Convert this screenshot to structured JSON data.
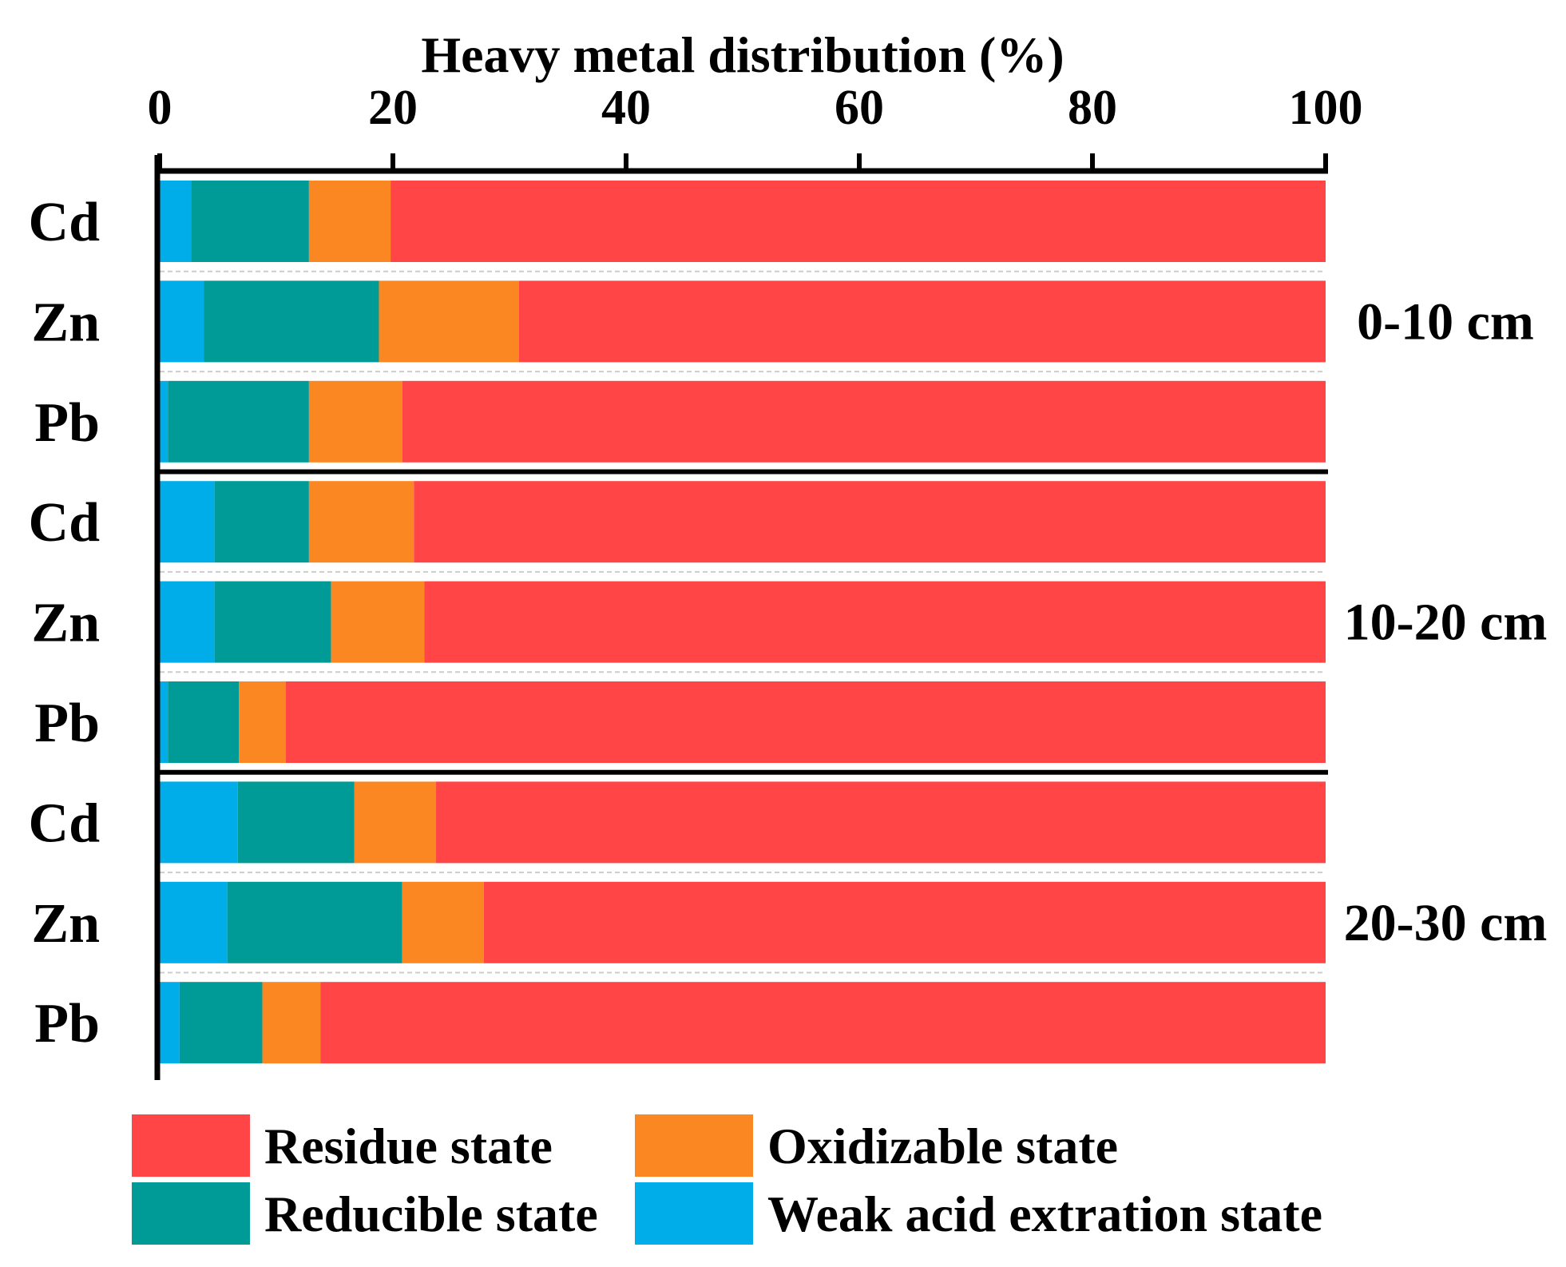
{
  "colors": {
    "residue": "#ff4545",
    "oxidizable": "#fb8722",
    "reducible": "#009b97",
    "weak_acid": "#00ade8",
    "axis": "#000000",
    "divider": "#cccccc"
  },
  "chart_data": {
    "type": "bar",
    "orientation": "horizontal",
    "stacked": true,
    "title": "Heavy metal distribution (%)",
    "xlabel": "Heavy metal distribution (%)",
    "ylabel": "",
    "xlim": [
      0,
      100
    ],
    "xticks": [
      "0",
      "20",
      "40",
      "60",
      "80",
      "100"
    ],
    "x_axis_position": "top",
    "legend_position": "bottom",
    "groups": [
      {
        "label": "0-10 cm",
        "metals": [
          "Cd",
          "Zn",
          "Pb"
        ]
      },
      {
        "label": "10-20 cm",
        "metals": [
          "Cd",
          "Zn",
          "Pb"
        ]
      },
      {
        "label": "20-30 cm",
        "metals": [
          "Cd",
          "Zn",
          "Pb"
        ]
      }
    ],
    "categories": [
      "Cd",
      "Zn",
      "Pb",
      "Cd",
      "Zn",
      "Pb",
      "Cd",
      "Zn",
      "Pb"
    ],
    "series": [
      {
        "key": "weak_acid",
        "name": "Weak acid extration state",
        "values": [
          2.7,
          3.8,
          0.7,
          4.7,
          4.7,
          0.7,
          6.7,
          5.8,
          1.7
        ]
      },
      {
        "key": "reducible",
        "name": "Reducible state",
        "values": [
          10.1,
          15.0,
          12.1,
          8.1,
          10.0,
          6.1,
          10.0,
          15.0,
          7.1
        ]
      },
      {
        "key": "oxidizable",
        "name": "Oxidizable state",
        "values": [
          7.0,
          12.0,
          8.0,
          9.0,
          8.0,
          4.0,
          7.0,
          7.0,
          5.0
        ]
      },
      {
        "key": "residue",
        "name": "Residue state",
        "values": [
          80.2,
          69.2,
          79.2,
          78.2,
          77.3,
          89.2,
          76.3,
          72.2,
          86.2
        ]
      }
    ]
  },
  "legend": {
    "items": [
      {
        "key": "residue",
        "label": "Residue state"
      },
      {
        "key": "oxidizable",
        "label": "Oxidizable state"
      },
      {
        "key": "reducible",
        "label": "Reducible state"
      },
      {
        "key": "weak_acid",
        "label": "Weak acid extration state"
      }
    ]
  }
}
